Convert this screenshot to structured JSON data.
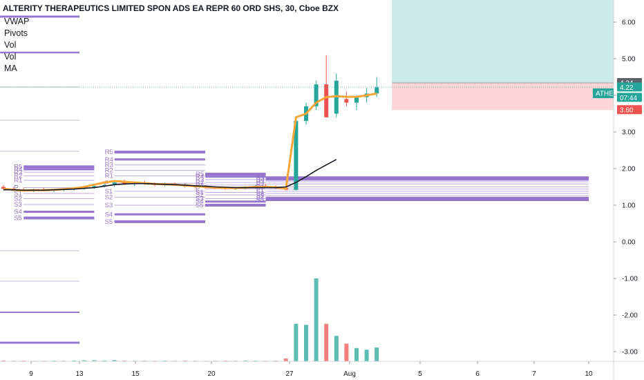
{
  "header": {
    "title": "ALTERITY THERAPEUTICS LIMITED SPON ADS EA REPR 60 ORD SHS, 30, Cboe BZX",
    "indicators": [
      "VWAP",
      "Pivots",
      "Vol",
      "Vol",
      "MA"
    ]
  },
  "badges": {
    "top_value": "6.82",
    "last_price": "4.34",
    "symbol": "ATHE",
    "symbol_price": "4.22",
    "countdown": "07:44",
    "stop": "3.60"
  },
  "colors": {
    "up": "#26a69a",
    "down": "#ef5350",
    "pivot": "#9575cd",
    "vwap": "#f7a536",
    "ma": "#131722",
    "target_zone": "#cceae9",
    "stop_zone": "#fbd6d6"
  },
  "chart_data": {
    "type": "candlestick",
    "y_ticks": [
      "6.00",
      "5.00",
      "4.00",
      "3.00",
      "2.00",
      "1.00",
      "0.00",
      "-1.00",
      "-2.00",
      "-3.00"
    ],
    "ylim": [
      -3.3,
      6.3
    ],
    "x_ticks": [
      "9",
      "13",
      "15",
      "20",
      "27",
      "Aug",
      "5",
      "6",
      "7",
      "10"
    ],
    "pivot_labels": [
      "R5",
      "R4",
      "R3",
      "R2",
      "R1",
      "P",
      "S1",
      "S2",
      "S3",
      "S4",
      "S5"
    ],
    "candles": [
      {
        "o": 1.5,
        "h": 1.55,
        "l": 1.42,
        "c": 1.45
      },
      {
        "o": 1.45,
        "h": 1.5,
        "l": 1.38,
        "c": 1.42
      },
      {
        "o": 1.42,
        "h": 1.48,
        "l": 1.38,
        "c": 1.4
      },
      {
        "o": 1.4,
        "h": 1.45,
        "l": 1.36,
        "c": 1.43
      },
      {
        "o": 1.43,
        "h": 1.48,
        "l": 1.38,
        "c": 1.4
      },
      {
        "o": 1.4,
        "h": 1.45,
        "l": 1.35,
        "c": 1.42
      },
      {
        "o": 1.42,
        "h": 1.46,
        "l": 1.38,
        "c": 1.44
      },
      {
        "o": 1.44,
        "h": 1.5,
        "l": 1.4,
        "c": 1.46
      },
      {
        "o": 1.46,
        "h": 1.52,
        "l": 1.42,
        "c": 1.48
      },
      {
        "o": 1.48,
        "h": 1.56,
        "l": 1.45,
        "c": 1.52
      },
      {
        "o": 1.52,
        "h": 1.6,
        "l": 1.48,
        "c": 1.55
      },
      {
        "o": 1.55,
        "h": 1.66,
        "l": 1.5,
        "c": 1.62
      },
      {
        "o": 1.62,
        "h": 1.7,
        "l": 1.55,
        "c": 1.58
      },
      {
        "o": 1.58,
        "h": 1.64,
        "l": 1.52,
        "c": 1.6
      },
      {
        "o": 1.6,
        "h": 1.66,
        "l": 1.55,
        "c": 1.58
      },
      {
        "o": 1.58,
        "h": 1.62,
        "l": 1.52,
        "c": 1.56
      },
      {
        "o": 1.56,
        "h": 1.62,
        "l": 1.52,
        "c": 1.58
      },
      {
        "o": 1.58,
        "h": 1.62,
        "l": 1.52,
        "c": 1.55
      },
      {
        "o": 1.55,
        "h": 1.6,
        "l": 1.48,
        "c": 1.52
      },
      {
        "o": 1.52,
        "h": 1.56,
        "l": 1.46,
        "c": 1.5
      },
      {
        "o": 1.5,
        "h": 1.55,
        "l": 1.45,
        "c": 1.48
      },
      {
        "o": 1.48,
        "h": 1.52,
        "l": 1.44,
        "c": 1.46
      },
      {
        "o": 1.46,
        "h": 1.5,
        "l": 1.42,
        "c": 1.45
      },
      {
        "o": 1.45,
        "h": 1.5,
        "l": 1.42,
        "c": 1.47
      },
      {
        "o": 1.47,
        "h": 1.52,
        "l": 1.43,
        "c": 1.5
      },
      {
        "o": 1.5,
        "h": 1.56,
        "l": 1.46,
        "c": 1.53
      },
      {
        "o": 1.53,
        "h": 1.58,
        "l": 1.48,
        "c": 1.5
      },
      {
        "o": 1.5,
        "h": 1.54,
        "l": 1.45,
        "c": 1.48
      },
      {
        "o": 1.48,
        "h": 1.52,
        "l": 1.4,
        "c": 1.42
      },
      {
        "o": 1.42,
        "h": 3.4,
        "l": 1.4,
        "c": 3.3
      },
      {
        "o": 3.3,
        "h": 3.8,
        "l": 3.2,
        "c": 3.7
      },
      {
        "o": 3.7,
        "h": 4.4,
        "l": 3.6,
        "c": 4.3
      },
      {
        "o": 4.3,
        "h": 5.1,
        "l": 3.4,
        "c": 3.4
      },
      {
        "o": 3.5,
        "h": 4.6,
        "l": 3.4,
        "c": 4.4
      },
      {
        "o": 3.9,
        "h": 4.1,
        "l": 3.7,
        "c": 3.8
      },
      {
        "o": 3.8,
        "h": 4.0,
        "l": 3.6,
        "c": 3.95
      },
      {
        "o": 3.95,
        "h": 4.2,
        "l": 3.8,
        "c": 4.05
      },
      {
        "o": 4.05,
        "h": 4.5,
        "l": 3.95,
        "c": 4.22
      }
    ],
    "volumes": [
      0.15,
      0.1,
      0.12,
      0.08,
      0.1,
      0.12,
      0.1,
      0.15,
      0.18,
      0.2,
      0.14,
      0.22,
      0.12,
      0.1,
      0.12,
      0.1,
      0.14,
      0.1,
      0.12,
      0.1,
      0.08,
      0.1,
      0.12,
      0.1,
      0.14,
      0.12,
      0.1,
      0.12,
      0.5,
      6.8,
      6.6,
      15.0,
      6.8,
      4.6,
      3.2,
      2.4,
      2.1,
      2.5
    ],
    "vwap": [
      1.45,
      1.42,
      1.4,
      1.41,
      1.41,
      1.42,
      1.44,
      1.46,
      1.5,
      1.56,
      1.62,
      1.66,
      1.64,
      1.62,
      1.6,
      1.58,
      1.57,
      1.56,
      1.54,
      1.52,
      1.5,
      1.48,
      1.47,
      1.47,
      1.48,
      1.5,
      1.5,
      1.49,
      1.45,
      3.4,
      3.5,
      3.8,
      3.95,
      3.98,
      3.96,
      3.96,
      4.0,
      4.05
    ],
    "ma": [
      1.42,
      1.42,
      1.41,
      1.41,
      1.41,
      1.42,
      1.43,
      1.44,
      1.46,
      1.48,
      1.52,
      1.56,
      1.58,
      1.59,
      1.59,
      1.58,
      1.57,
      1.56,
      1.55,
      1.53,
      1.52,
      1.5,
      1.49,
      1.48,
      1.48,
      1.48,
      1.48,
      1.48,
      1.5,
      1.62,
      1.78,
      1.95,
      2.1,
      2.25
    ],
    "pivot_groups": [
      {
        "start_index": 2,
        "end_index": 9,
        "levels": [
          2.05,
          1.98,
          1.9,
          1.8,
          1.68,
          1.48,
          1.32,
          1.18,
          1.02,
          0.82,
          0.65
        ]
      },
      {
        "start_index": 11,
        "end_index": 20,
        "levels": [
          2.45,
          2.25,
          2.1,
          1.95,
          1.8,
          1.6,
          1.38,
          1.22,
          1.0,
          0.75,
          0.55
        ]
      },
      {
        "start_index": 20,
        "end_index": 26,
        "levels": [
          1.85,
          1.78,
          1.7,
          1.62,
          1.55,
          1.45,
          1.35,
          1.28,
          1.18,
          1.1,
          1.0
        ]
      },
      {
        "start_index": 26,
        "end_index": 39,
        "levels": [
          1.75,
          1.7,
          1.64,
          1.58,
          1.5,
          1.44,
          1.38,
          1.32,
          1.26,
          1.2,
          1.15
        ]
      }
    ],
    "trade_zone": {
      "start_index": 38.5,
      "entry": 4.34,
      "target": 6.82,
      "stop": 3.6
    }
  }
}
